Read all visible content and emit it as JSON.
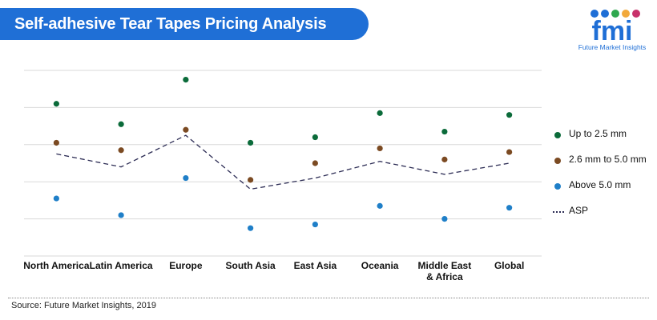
{
  "header": {
    "title": "Self-adhesive Tear Tapes Pricing Analysis"
  },
  "logo": {
    "text": "fmi",
    "subtitle": "Future Market Insights"
  },
  "source": "Source: Future Market Insights, 2019",
  "colors": {
    "banner": "#1f6fd6",
    "upTo25": "#0b6b3a",
    "mid": "#7b4a22",
    "above5": "#1f7fc8",
    "asp": "#2d2d55",
    "grid": "#d9d9d9"
  },
  "legend": [
    {
      "label": "Up to 2.5 mm",
      "color": "#0b6b3a",
      "kind": "dot"
    },
    {
      "label": "2.6 mm to 5.0 mm",
      "color": "#7b4a22",
      "kind": "dot"
    },
    {
      "label": "Above 5.0 mm",
      "color": "#1f7fc8",
      "kind": "dot"
    },
    {
      "label": "ASP",
      "color": "#2d2d55",
      "kind": "dash"
    }
  ],
  "chart_data": {
    "type": "scatter",
    "title": "Self-adhesive Tear Tapes Pricing Analysis",
    "categories": [
      "North America",
      "Latin America",
      "Europe",
      "South Asia",
      "East Asia",
      "Oceania",
      "Middle East & Africa",
      "Global"
    ],
    "ylim": [
      0,
      100
    ],
    "grid": true,
    "legend_position": "right",
    "series": [
      {
        "name": "Up to 2.5 mm",
        "color": "#0b6b3a",
        "style": "dot",
        "values": [
          82,
          71,
          95,
          61,
          64,
          77,
          67,
          76
        ]
      },
      {
        "name": "2.6 mm to 5.0 mm",
        "color": "#7b4a22",
        "style": "dot",
        "values": [
          61,
          57,
          68,
          41,
          50,
          58,
          52,
          56
        ]
      },
      {
        "name": "Above 5.0 mm",
        "color": "#1f7fc8",
        "style": "dot",
        "values": [
          31,
          22,
          42,
          15,
          17,
          27,
          20,
          26
        ]
      },
      {
        "name": "ASP",
        "color": "#2d2d55",
        "style": "dash",
        "values": [
          55,
          48,
          65,
          36,
          42,
          51,
          44,
          50
        ]
      }
    ]
  }
}
